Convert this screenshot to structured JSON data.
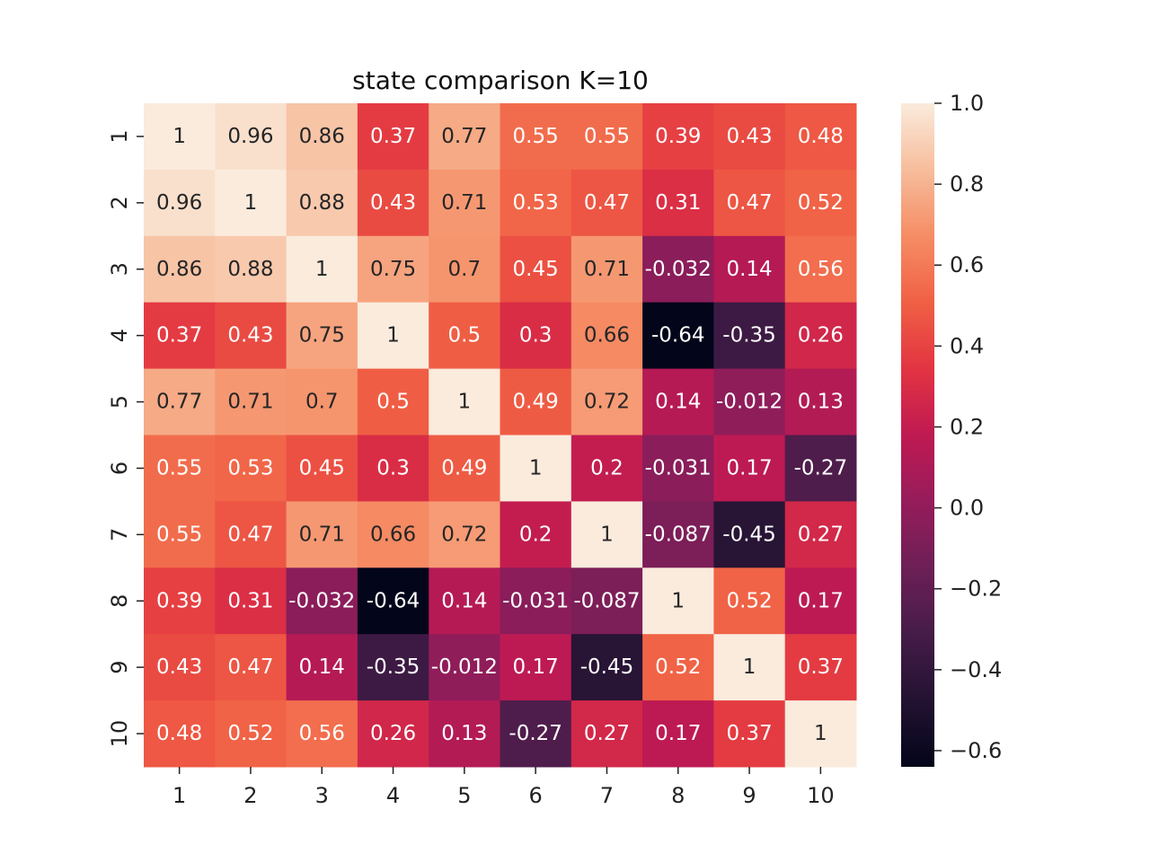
{
  "chart_data": {
    "type": "heatmap",
    "title": "state comparison K=10",
    "x_labels": [
      "1",
      "2",
      "3",
      "4",
      "5",
      "6",
      "7",
      "8",
      "9",
      "10"
    ],
    "y_labels": [
      "1",
      "2",
      "3",
      "4",
      "5",
      "6",
      "7",
      "8",
      "9",
      "10"
    ],
    "values": [
      [
        1,
        0.96,
        0.86,
        0.37,
        0.77,
        0.55,
        0.55,
        0.39,
        0.43,
        0.48
      ],
      [
        0.96,
        1,
        0.88,
        0.43,
        0.71,
        0.53,
        0.47,
        0.31,
        0.47,
        0.52
      ],
      [
        0.86,
        0.88,
        1,
        0.75,
        0.7,
        0.45,
        0.71,
        -0.032,
        0.14,
        0.56
      ],
      [
        0.37,
        0.43,
        0.75,
        1,
        0.5,
        0.3,
        0.66,
        -0.64,
        -0.35,
        0.26
      ],
      [
        0.77,
        0.71,
        0.7,
        0.5,
        1,
        0.49,
        0.72,
        0.14,
        -0.012,
        0.13
      ],
      [
        0.55,
        0.53,
        0.45,
        0.3,
        0.49,
        1,
        0.2,
        -0.031,
        0.17,
        -0.27
      ],
      [
        0.55,
        0.47,
        0.71,
        0.66,
        0.72,
        0.2,
        1,
        -0.087,
        -0.45,
        0.27
      ],
      [
        0.39,
        0.31,
        -0.032,
        -0.64,
        0.14,
        -0.031,
        -0.087,
        1,
        0.52,
        0.17
      ],
      [
        0.43,
        0.47,
        0.14,
        -0.35,
        -0.012,
        0.17,
        -0.45,
        0.52,
        1,
        0.37
      ],
      [
        0.48,
        0.52,
        0.56,
        0.26,
        0.13,
        -0.27,
        0.27,
        0.17,
        0.37,
        1
      ]
    ],
    "labels": [
      [
        "1",
        "0.96",
        "0.86",
        "0.37",
        "0.77",
        "0.55",
        "0.55",
        "0.39",
        "0.43",
        "0.48"
      ],
      [
        "0.96",
        "1",
        "0.88",
        "0.43",
        "0.71",
        "0.53",
        "0.47",
        "0.31",
        "0.47",
        "0.52"
      ],
      [
        "0.86",
        "0.88",
        "1",
        "0.75",
        "0.7",
        "0.45",
        "0.71",
        "-0.032",
        "0.14",
        "0.56"
      ],
      [
        "0.37",
        "0.43",
        "0.75",
        "1",
        "0.5",
        "0.3",
        "0.66",
        "-0.64",
        "-0.35",
        "0.26"
      ],
      [
        "0.77",
        "0.71",
        "0.7",
        "0.5",
        "1",
        "0.49",
        "0.72",
        "0.14",
        "-0.012",
        "0.13"
      ],
      [
        "0.55",
        "0.53",
        "0.45",
        "0.3",
        "0.49",
        "1",
        "0.2",
        "-0.031",
        "0.17",
        "-0.27"
      ],
      [
        "0.55",
        "0.47",
        "0.71",
        "0.66",
        "0.72",
        "0.2",
        "1",
        "-0.087",
        "-0.45",
        "0.27"
      ],
      [
        "0.39",
        "0.31",
        "-0.032",
        "-0.64",
        "0.14",
        "-0.031",
        "-0.087",
        "1",
        "0.52",
        "0.17"
      ],
      [
        "0.43",
        "0.47",
        "0.14",
        "-0.35",
        "-0.012",
        "0.17",
        "-0.45",
        "0.52",
        "1",
        "0.37"
      ],
      [
        "0.48",
        "0.52",
        "0.56",
        "0.26",
        "0.13",
        "-0.27",
        "0.27",
        "0.17",
        "0.37",
        "1"
      ]
    ],
    "colorbar": {
      "range": [
        -0.64,
        1.0
      ],
      "ticks": [
        1.0,
        0.8,
        0.6,
        0.4,
        0.2,
        0.0,
        -0.2,
        -0.4,
        -0.6
      ],
      "tick_labels": [
        "1.0",
        "0.8",
        "0.6",
        "0.4",
        "0.2",
        "0.0",
        "−0.2",
        "−0.4",
        "−0.6"
      ]
    },
    "colormap": "rocket",
    "grid": false
  }
}
